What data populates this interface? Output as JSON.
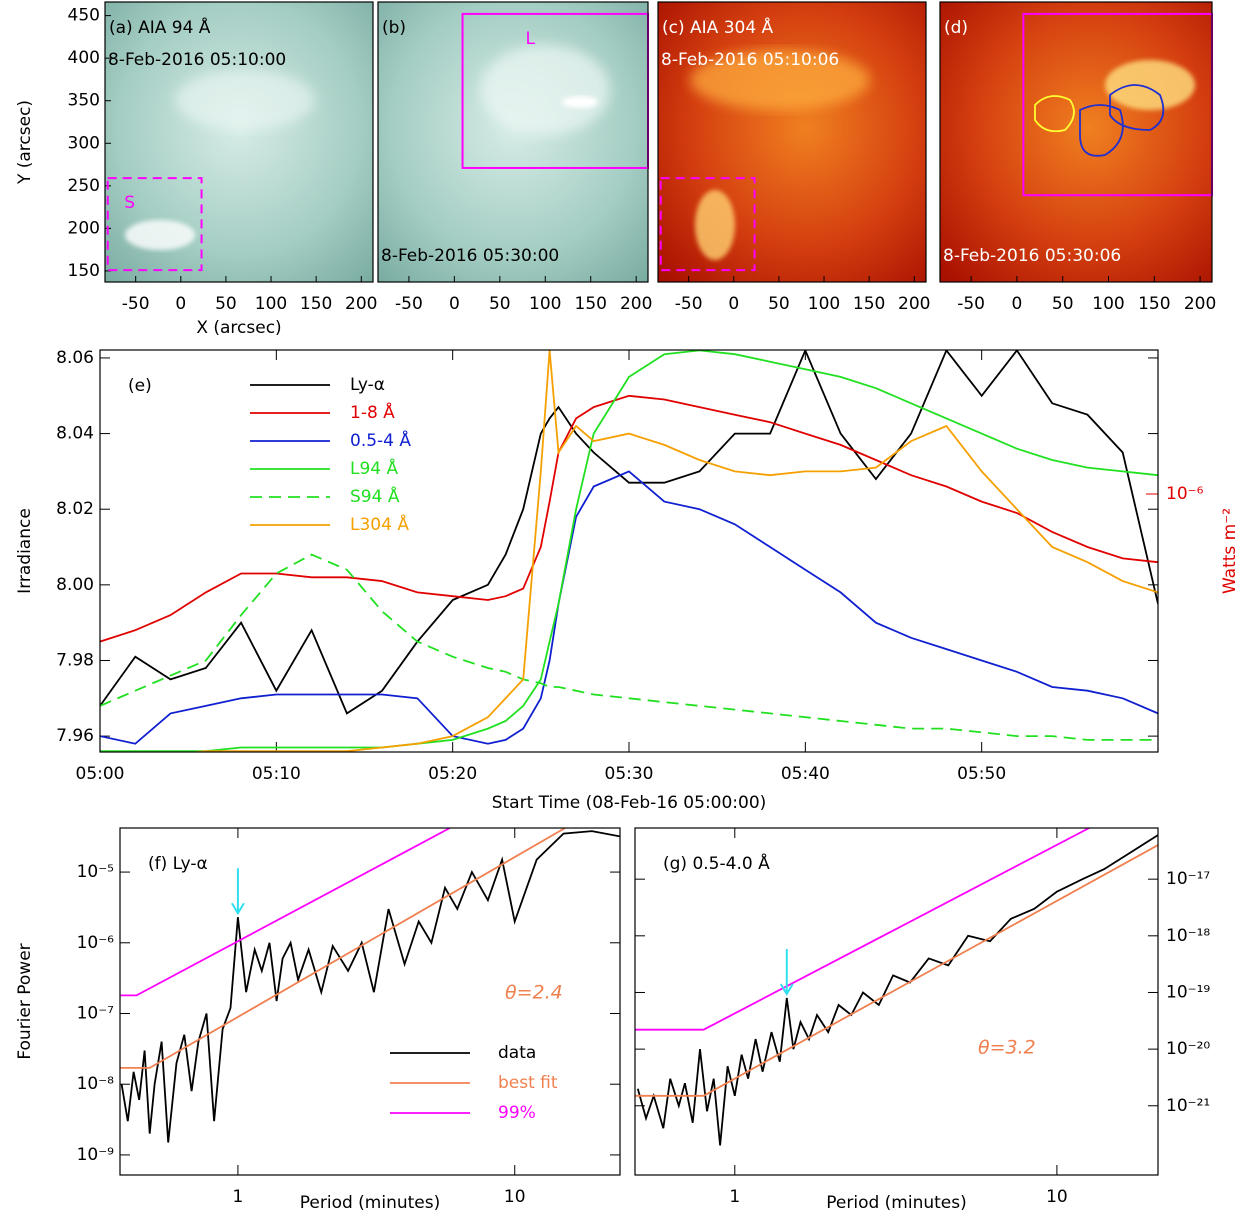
{
  "chart_data": [
    {
      "type": "image",
      "title": "(a) AIA 94 Å",
      "subtitle": "8-Feb-2016 05:10:00",
      "subtitle_corner": "top-left",
      "colormap": "teal",
      "xlim": [
        -84,
        213
      ],
      "xticks": [
        -50,
        0,
        50,
        100,
        150,
        200
      ],
      "ylim": [
        137,
        466
      ],
      "yticks": [
        150,
        200,
        250,
        300,
        350,
        400,
        450
      ],
      "xlabel": "X (arcsec)",
      "ylabel": "Y (arcsec)",
      "regions": [
        {
          "label": "S",
          "x": [
            -81,
            23
          ],
          "y": [
            151,
            259
          ],
          "dashed": true
        }
      ]
    },
    {
      "type": "image",
      "title": "(b)",
      "subtitle": "8-Feb-2016 05:30:00",
      "subtitle_corner": "bottom-left",
      "colormap": "teal",
      "xlim": [
        -84,
        213
      ],
      "xticks": [
        -50,
        0,
        50,
        100,
        150,
        200
      ],
      "ylim": [
        137,
        466
      ],
      "regions": [
        {
          "label": "L",
          "x": [
            9,
            213
          ],
          "y": [
            271,
            452
          ],
          "dashed": false
        }
      ]
    },
    {
      "type": "image",
      "title": "(c) AIA 304 Å",
      "subtitle": "8-Feb-2016 05:10:06",
      "subtitle_corner": "top-left",
      "colormap": "red",
      "xlim": [
        -84,
        213
      ],
      "xticks": [
        -50,
        0,
        50,
        100,
        150,
        200
      ],
      "ylim": [
        137,
        466
      ],
      "regions": [
        {
          "x": [
            -81,
            23
          ],
          "y": [
            151,
            259
          ],
          "dashed": true
        }
      ]
    },
    {
      "type": "image",
      "title": "(d)",
      "subtitle": "8-Feb-2016 05:30:06",
      "subtitle_corner": "bottom-left",
      "colormap": "red",
      "xlim": [
        -84,
        213
      ],
      "xticks": [
        -50,
        0,
        50,
        100,
        150,
        200
      ],
      "ylim": [
        137,
        466
      ],
      "regions": [
        {
          "x": [
            7,
            213
          ],
          "y": [
            239,
            452
          ],
          "dashed": false
        }
      ]
    },
    {
      "type": "line",
      "title": "(e)",
      "xlabel": "Start Time (08-Feb-16 05:00:00)",
      "ylabel": "Irradiance",
      "xlim": [
        0,
        60
      ],
      "xticks": [
        {
          "value": 0,
          "label": "05:00"
        },
        {
          "value": 10,
          "label": "05:10"
        },
        {
          "value": 20,
          "label": "05:20"
        },
        {
          "value": 30,
          "label": "05:30"
        },
        {
          "value": 40,
          "label": "05:40"
        },
        {
          "value": 50,
          "label": "05:50"
        }
      ],
      "ylim": [
        7.9558,
        8.0621
      ],
      "yticks": [
        7.96,
        7.98,
        {
          "value": 8,
          "label": "8.00"
        },
        8.02,
        8.04,
        8.06
      ],
      "y2lim": [
        6.25e-07,
        1.3e-06
      ],
      "y2ticks": [
        {
          "value": 1e-06,
          "label": "10⁻⁶"
        }
      ],
      "y2log": true,
      "y2label": "Watts m⁻²",
      "y2color": "#e00000",
      "legend": "upper-left",
      "x": [
        0,
        2,
        4,
        6,
        8,
        10,
        12,
        14,
        16,
        18,
        20,
        22,
        23,
        24,
        25,
        25.5,
        26,
        27,
        28,
        30,
        32,
        34,
        36,
        38,
        40,
        42,
        44,
        46,
        48,
        50,
        52,
        54,
        56,
        58,
        60
      ],
      "series": [
        {
          "name": "Ly-α",
          "color": "#000000",
          "values": [
            7.968,
            7.981,
            7.975,
            7.978,
            7.99,
            7.972,
            7.988,
            7.966,
            7.972,
            7.985,
            7.996,
            8.0,
            8.008,
            8.02,
            8.04,
            8.044,
            8.047,
            8.04,
            8.035,
            8.027,
            8.027,
            8.03,
            8.04,
            8.04,
            8.062,
            8.04,
            8.028,
            8.04,
            8.062,
            8.05,
            8.062,
            8.048,
            8.045,
            8.035,
            7.995
          ]
        },
        {
          "name": "1-8 Å",
          "color": "#e00000",
          "values": [
            7.985,
            7.988,
            7.992,
            7.998,
            8.003,
            8.003,
            8.002,
            8.002,
            8.001,
            7.998,
            7.997,
            7.996,
            7.997,
            7.999,
            8.01,
            8.022,
            8.035,
            8.044,
            8.047,
            8.05,
            8.049,
            8.047,
            8.045,
            8.043,
            8.04,
            8.037,
            8.033,
            8.029,
            8.026,
            8.022,
            8.019,
            8.014,
            8.01,
            8.007,
            8.006
          ]
        },
        {
          "name": "0.5-4 Å",
          "color": "#1020d0",
          "values": [
            7.96,
            7.958,
            7.966,
            7.968,
            7.97,
            7.971,
            7.971,
            7.971,
            7.971,
            7.97,
            7.96,
            7.958,
            7.959,
            7.962,
            7.97,
            7.98,
            7.995,
            8.018,
            8.026,
            8.03,
            8.022,
            8.02,
            8.016,
            8.01,
            8.004,
            7.998,
            7.99,
            7.986,
            7.983,
            7.98,
            7.977,
            7.973,
            7.972,
            7.97,
            7.966
          ]
        },
        {
          "name": "L94 Å",
          "color": "#20e020",
          "values": [
            7.956,
            7.956,
            7.956,
            7.956,
            7.957,
            7.957,
            7.957,
            7.957,
            7.957,
            7.958,
            7.959,
            7.962,
            7.964,
            7.968,
            7.975,
            7.985,
            7.995,
            8.02,
            8.04,
            8.055,
            8.061,
            8.062,
            8.061,
            8.059,
            8.057,
            8.055,
            8.052,
            8.048,
            8.044,
            8.04,
            8.036,
            8.033,
            8.031,
            8.03,
            8.029
          ]
        },
        {
          "name": "S94 Å",
          "color": "#20e020",
          "dashed": true,
          "values": [
            7.968,
            7.972,
            7.976,
            7.98,
            7.992,
            8.003,
            8.008,
            8.004,
            7.993,
            7.985,
            7.981,
            7.978,
            7.977,
            7.975,
            7.974,
            7.973,
            7.973,
            7.972,
            7.971,
            7.97,
            7.969,
            7.968,
            7.967,
            7.966,
            7.965,
            7.964,
            7.963,
            7.962,
            7.962,
            7.961,
            7.96,
            7.96,
            7.959,
            7.959,
            7.959
          ]
        },
        {
          "name": "L304 Å",
          "color": "#f5a000",
          "values": [
            7.955,
            7.955,
            7.955,
            7.956,
            7.956,
            7.956,
            7.956,
            7.956,
            7.957,
            7.958,
            7.96,
            7.965,
            7.97,
            7.975,
            8.03,
            8.062,
            8.035,
            8.042,
            8.038,
            8.04,
            8.037,
            8.033,
            8.03,
            8.029,
            8.03,
            8.03,
            8.031,
            8.038,
            8.042,
            8.03,
            8.02,
            8.01,
            8.006,
            8.001,
            7.998
          ]
        }
      ]
    },
    {
      "type": "line",
      "title": "(f) Ly-α",
      "xlabel": "Period (minutes)",
      "ylabel": "Fourier Power",
      "xlog": true,
      "ylog": true,
      "xlim": [
        0.375,
        24
      ],
      "xticks": [
        1,
        10
      ],
      "ylim": [
        5.2e-10,
        4.2e-05
      ],
      "yticks": [
        {
          "value": 1e-09,
          "label": "10⁻⁹"
        },
        {
          "value": 1e-08,
          "label": "10⁻⁸"
        },
        {
          "value": 1e-07,
          "label": "10⁻⁷"
        },
        {
          "value": 1e-06,
          "label": "10⁻⁶"
        },
        {
          "value": 1e-05,
          "label": "10⁻⁵"
        }
      ],
      "yaxis_side": "left",
      "legend": "lower-right",
      "annotations": [
        {
          "text": "θ=2.4",
          "color": "#f08050"
        }
      ],
      "arrow": {
        "x": 1.0,
        "y": 2.3e-06,
        "color": "#30e0f0"
      },
      "series": [
        {
          "name": "data",
          "color": "#000000",
          "x": [
            0.38,
            0.4,
            0.42,
            0.44,
            0.46,
            0.48,
            0.5,
            0.53,
            0.56,
            0.6,
            0.64,
            0.68,
            0.72,
            0.77,
            0.82,
            0.88,
            0.94,
            1.0,
            1.07,
            1.15,
            1.22,
            1.3,
            1.38,
            1.45,
            1.55,
            1.65,
            1.8,
            2.0,
            2.2,
            2.5,
            2.8,
            3.1,
            3.5,
            4.0,
            4.5,
            5.0,
            5.6,
            6.2,
            7.0,
            8.0,
            9.0,
            10.0,
            12.0,
            15.0,
            19.0,
            24.0
          ],
          "values": [
            1e-08,
            3e-09,
            1.5e-08,
            6e-09,
            3e-08,
            2e-09,
            1e-08,
            4e-08,
            1.5e-09,
            2e-08,
            5e-08,
            8e-09,
            4e-08,
            1e-07,
            3e-09,
            6e-08,
            1.2e-07,
            2.3e-06,
            2e-07,
            8e-07,
            4e-07,
            1e-06,
            1.5e-07,
            6e-07,
            1e-06,
            3e-07,
            8e-07,
            2e-07,
            9e-07,
            4e-07,
            1e-06,
            2e-07,
            3e-06,
            5e-07,
            2e-06,
            1e-06,
            6e-06,
            3e-06,
            1e-05,
            4e-06,
            1.5e-05,
            2e-06,
            1.5e-05,
            3.5e-05,
            3.8e-05,
            3.2e-05
          ]
        },
        {
          "name": "best fit",
          "color": "#f08050",
          "x": [
            0.375,
            0.48,
            15.2
          ],
          "values": [
            1.7e-08,
            1.7e-08,
            4.2e-05
          ]
        },
        {
          "name": "99%",
          "color": "#ff00ff",
          "x": [
            0.375,
            0.43,
            5.83
          ],
          "values": [
            1.8e-07,
            1.8e-07,
            4.2e-05
          ]
        }
      ]
    },
    {
      "type": "line",
      "title": "(g) 0.5-4.0 Å",
      "xlabel": "Period (minutes)",
      "xlog": true,
      "ylog": true,
      "xlim": [
        0.49,
        20.6
      ],
      "xticks": [
        1,
        10
      ],
      "ylim": [
        6e-23,
        8e-17
      ],
      "yticks": [
        {
          "value": 1e-21,
          "label": "10⁻²¹"
        },
        {
          "value": 1e-20,
          "label": "10⁻²⁰"
        },
        {
          "value": 1e-19,
          "label": "10⁻¹⁹"
        },
        {
          "value": 1e-18,
          "label": "10⁻¹⁸"
        },
        {
          "value": 1e-17,
          "label": "10⁻¹⁷"
        }
      ],
      "yaxis_side": "right",
      "annotations": [
        {
          "text": "θ=3.2",
          "color": "#f08050"
        }
      ],
      "arrow": {
        "x": 1.45,
        "y": 8e-20,
        "color": "#30e0f0"
      },
      "series": [
        {
          "color": "#000000",
          "x": [
            0.5,
            0.53,
            0.56,
            0.6,
            0.63,
            0.67,
            0.7,
            0.74,
            0.78,
            0.82,
            0.86,
            0.9,
            0.95,
            1.0,
            1.05,
            1.1,
            1.16,
            1.22,
            1.3,
            1.38,
            1.45,
            1.52,
            1.6,
            1.7,
            1.8,
            1.95,
            2.1,
            2.3,
            2.5,
            2.8,
            3.1,
            3.5,
            4.0,
            4.6,
            5.3,
            6.2,
            7.2,
            8.5,
            10,
            12,
            14,
            17,
            20.6
          ],
          "values": [
            2e-21,
            6e-22,
            1.5e-21,
            4e-22,
            3e-21,
            1e-21,
            2.5e-21,
            5e-22,
            1e-20,
            8e-22,
            3e-21,
            2e-22,
            5e-21,
            1.5e-21,
            8e-21,
            3e-21,
            1.5e-20,
            4e-21,
            2e-20,
            6e-21,
            8e-20,
            1e-20,
            3e-20,
            1.5e-20,
            4e-20,
            2e-20,
            6e-20,
            4e-20,
            1e-19,
            6e-20,
            2e-19,
            1.5e-19,
            4e-19,
            3e-19,
            1e-18,
            8e-19,
            2e-18,
            3e-18,
            6e-18,
            1e-17,
            1.5e-17,
            3e-17,
            6e-17
          ]
        },
        {
          "color": "#f08050",
          "x": [
            0.49,
            0.8,
            20.6
          ],
          "values": [
            1.5e-21,
            1.5e-21,
            4e-17
          ]
        },
        {
          "color": "#ff00ff",
          "x": [
            0.49,
            0.8,
            12.6
          ],
          "values": [
            2.2e-20,
            2.2e-20,
            8e-17
          ]
        }
      ]
    }
  ]
}
